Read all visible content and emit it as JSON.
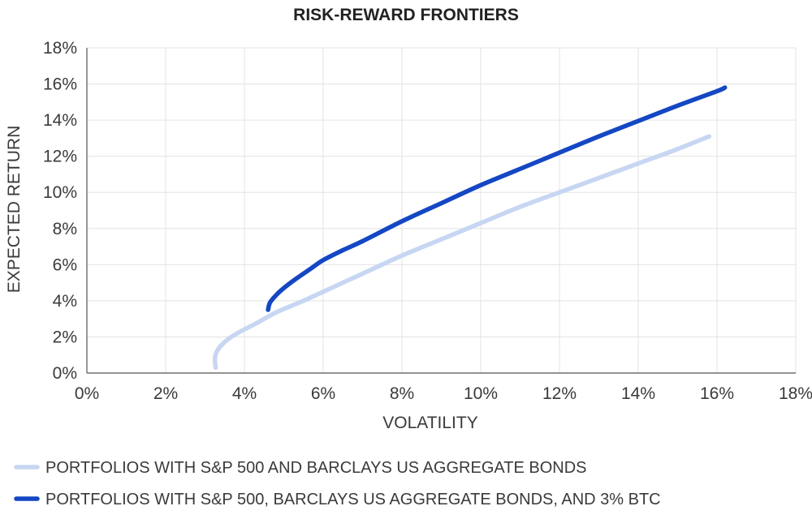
{
  "chart_data": {
    "type": "line",
    "title": "RISK-REWARD FRONTIERS",
    "xlabel": "VOLATILITY",
    "ylabel": "EXPECTED RETURN",
    "xlim": [
      0,
      18
    ],
    "ylim": [
      0,
      18
    ],
    "x_ticks": [
      "0%",
      "2%",
      "4%",
      "6%",
      "8%",
      "10%",
      "12%",
      "14%",
      "16%",
      "18%"
    ],
    "y_ticks": [
      "0%",
      "2%",
      "4%",
      "6%",
      "8%",
      "10%",
      "12%",
      "14%",
      "16%",
      "18%"
    ],
    "grid": true,
    "legend_position": "bottom",
    "series": [
      {
        "name": "PORTFOLIOS WITH S&P 500 AND BARCLAYS US AGGREGATE BONDS",
        "color": "#c7d6f2",
        "points": [
          [
            3.27,
            0.3
          ],
          [
            3.25,
            0.7
          ],
          [
            3.28,
            1.1
          ],
          [
            3.4,
            1.5
          ],
          [
            3.6,
            1.9
          ],
          [
            3.9,
            2.3
          ],
          [
            4.3,
            2.75
          ],
          [
            4.8,
            3.35
          ],
          [
            5.5,
            4.0
          ],
          [
            6.0,
            4.5
          ],
          [
            7.0,
            5.5
          ],
          [
            8.0,
            6.5
          ],
          [
            9.0,
            7.4
          ],
          [
            10.0,
            8.3
          ],
          [
            11.0,
            9.2
          ],
          [
            12.0,
            10.0
          ],
          [
            13.0,
            10.8
          ],
          [
            14.0,
            11.6
          ],
          [
            15.0,
            12.4
          ],
          [
            15.8,
            13.1
          ]
        ]
      },
      {
        "name": "PORTFOLIOS WITH S&P 500, BARCLAYS US AGGREGATE BONDS, AND 3% BTC",
        "color": "#1447c3",
        "points": [
          [
            4.6,
            3.5
          ],
          [
            4.65,
            3.9
          ],
          [
            4.8,
            4.3
          ],
          [
            5.0,
            4.7
          ],
          [
            5.3,
            5.2
          ],
          [
            5.7,
            5.8
          ],
          [
            6.0,
            6.25
          ],
          [
            6.5,
            6.8
          ],
          [
            7.0,
            7.3
          ],
          [
            8.0,
            8.4
          ],
          [
            9.0,
            9.4
          ],
          [
            10.0,
            10.4
          ],
          [
            11.0,
            11.3
          ],
          [
            12.0,
            12.2
          ],
          [
            13.0,
            13.1
          ],
          [
            14.0,
            13.95
          ],
          [
            15.0,
            14.8
          ],
          [
            16.0,
            15.6
          ],
          [
            16.2,
            15.8
          ]
        ]
      }
    ]
  }
}
